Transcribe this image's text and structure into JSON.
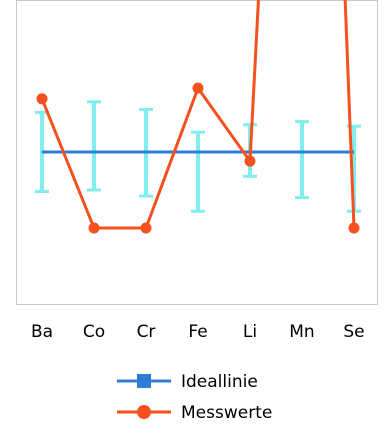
{
  "chart_data": {
    "type": "line",
    "categories": [
      "Ba",
      "Co",
      "Cr",
      "Fe",
      "Li",
      "Mn",
      "Se"
    ],
    "ylim": [
      -1.0,
      1.0
    ],
    "grid": false,
    "legend_position": "bottom",
    "series": [
      {
        "name": "Ideallinie",
        "color": "#2f7bd6",
        "marker": "square",
        "values": [
          0,
          0,
          0,
          0,
          0,
          0,
          0
        ]
      },
      {
        "name": "Messwerte",
        "color": "#f4511e",
        "marker": "circle",
        "values": [
          0.35,
          -0.5,
          -0.5,
          0.42,
          -0.06,
          null,
          -0.5
        ],
        "offscale_between": [
          [
            4,
            6
          ]
        ]
      }
    ],
    "error_bars": {
      "color": "#80eeee",
      "low": [
        -0.26,
        -0.25,
        -0.29,
        -0.39,
        -0.16,
        -0.3,
        -0.39
      ],
      "high": [
        0.26,
        0.33,
        0.28,
        0.13,
        0.18,
        0.2,
        0.17
      ]
    },
    "xlabel": "",
    "ylabel": ""
  }
}
